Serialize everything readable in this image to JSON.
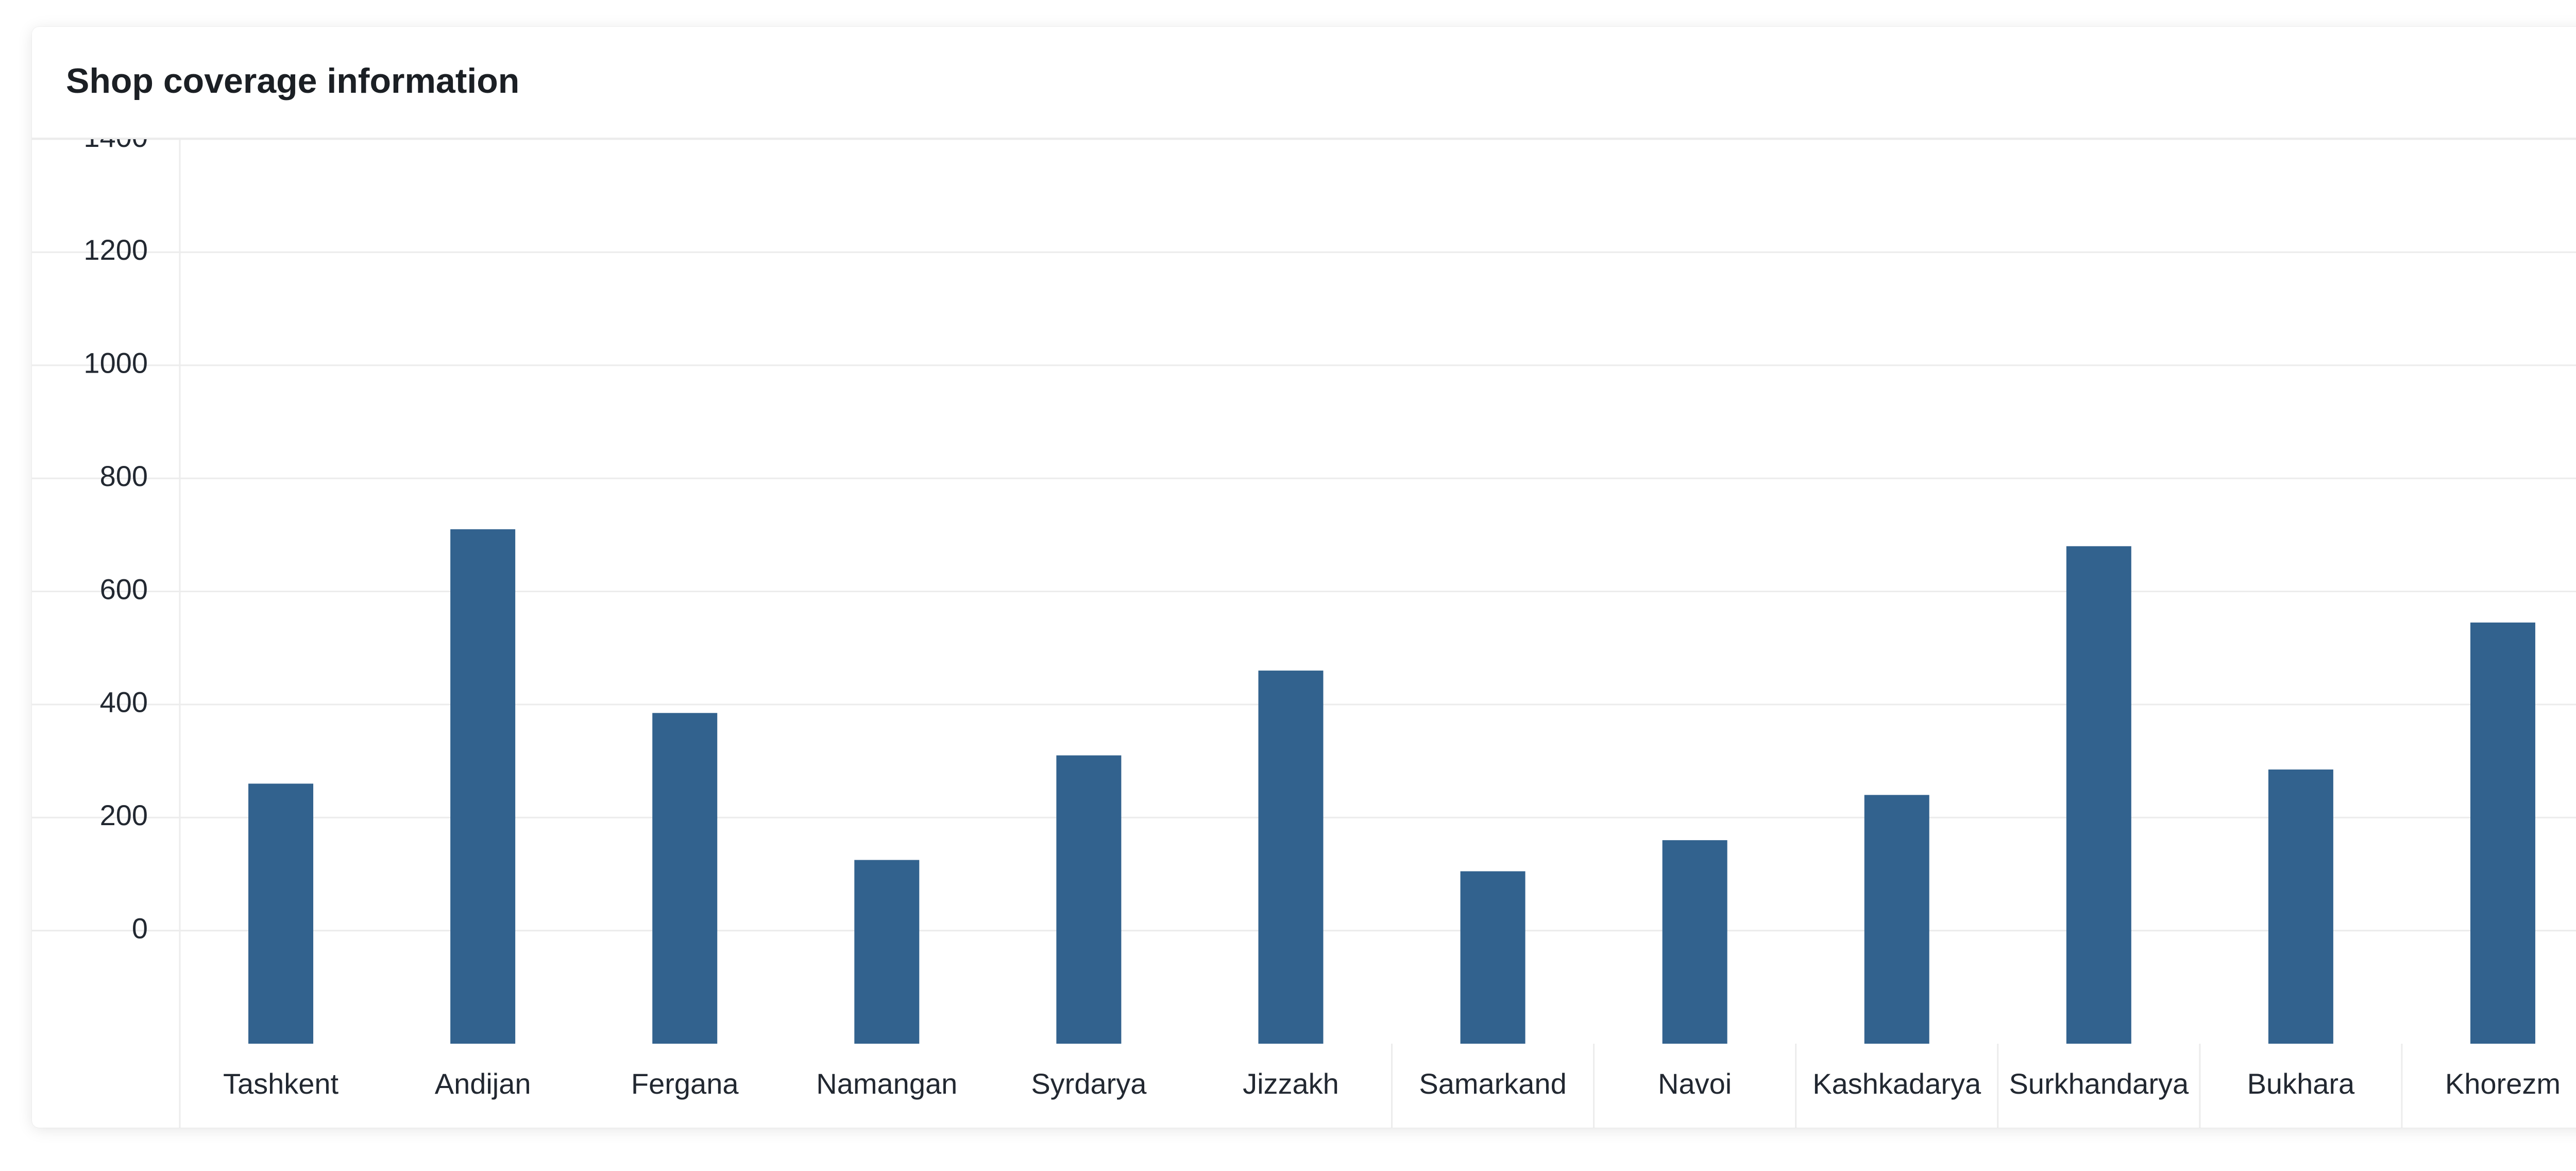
{
  "card": {
    "title": "Shop coverage information"
  },
  "colors": {
    "bar": "#32628e",
    "grid": "#ececec"
  },
  "chart_data": {
    "type": "bar",
    "title": "",
    "xlabel": "",
    "ylabel": "",
    "categories": [
      "Tashkent",
      "Andijan",
      "Fergana",
      "Namangan",
      "Syrdarya",
      "Jizzakh",
      "Samarkand",
      "Navoi",
      "Kashkadarya",
      "Surkhandarya",
      "Bukhara",
      "Khorezm"
    ],
    "values": [
      360,
      810,
      485,
      225,
      410,
      560,
      205,
      260,
      340,
      780,
      385,
      645
    ],
    "yticks": [
      0,
      200,
      400,
      600,
      800,
      1000,
      1200,
      1400
    ],
    "ylim": [
      -100,
      1500
    ],
    "grid": true,
    "legend": "none"
  }
}
